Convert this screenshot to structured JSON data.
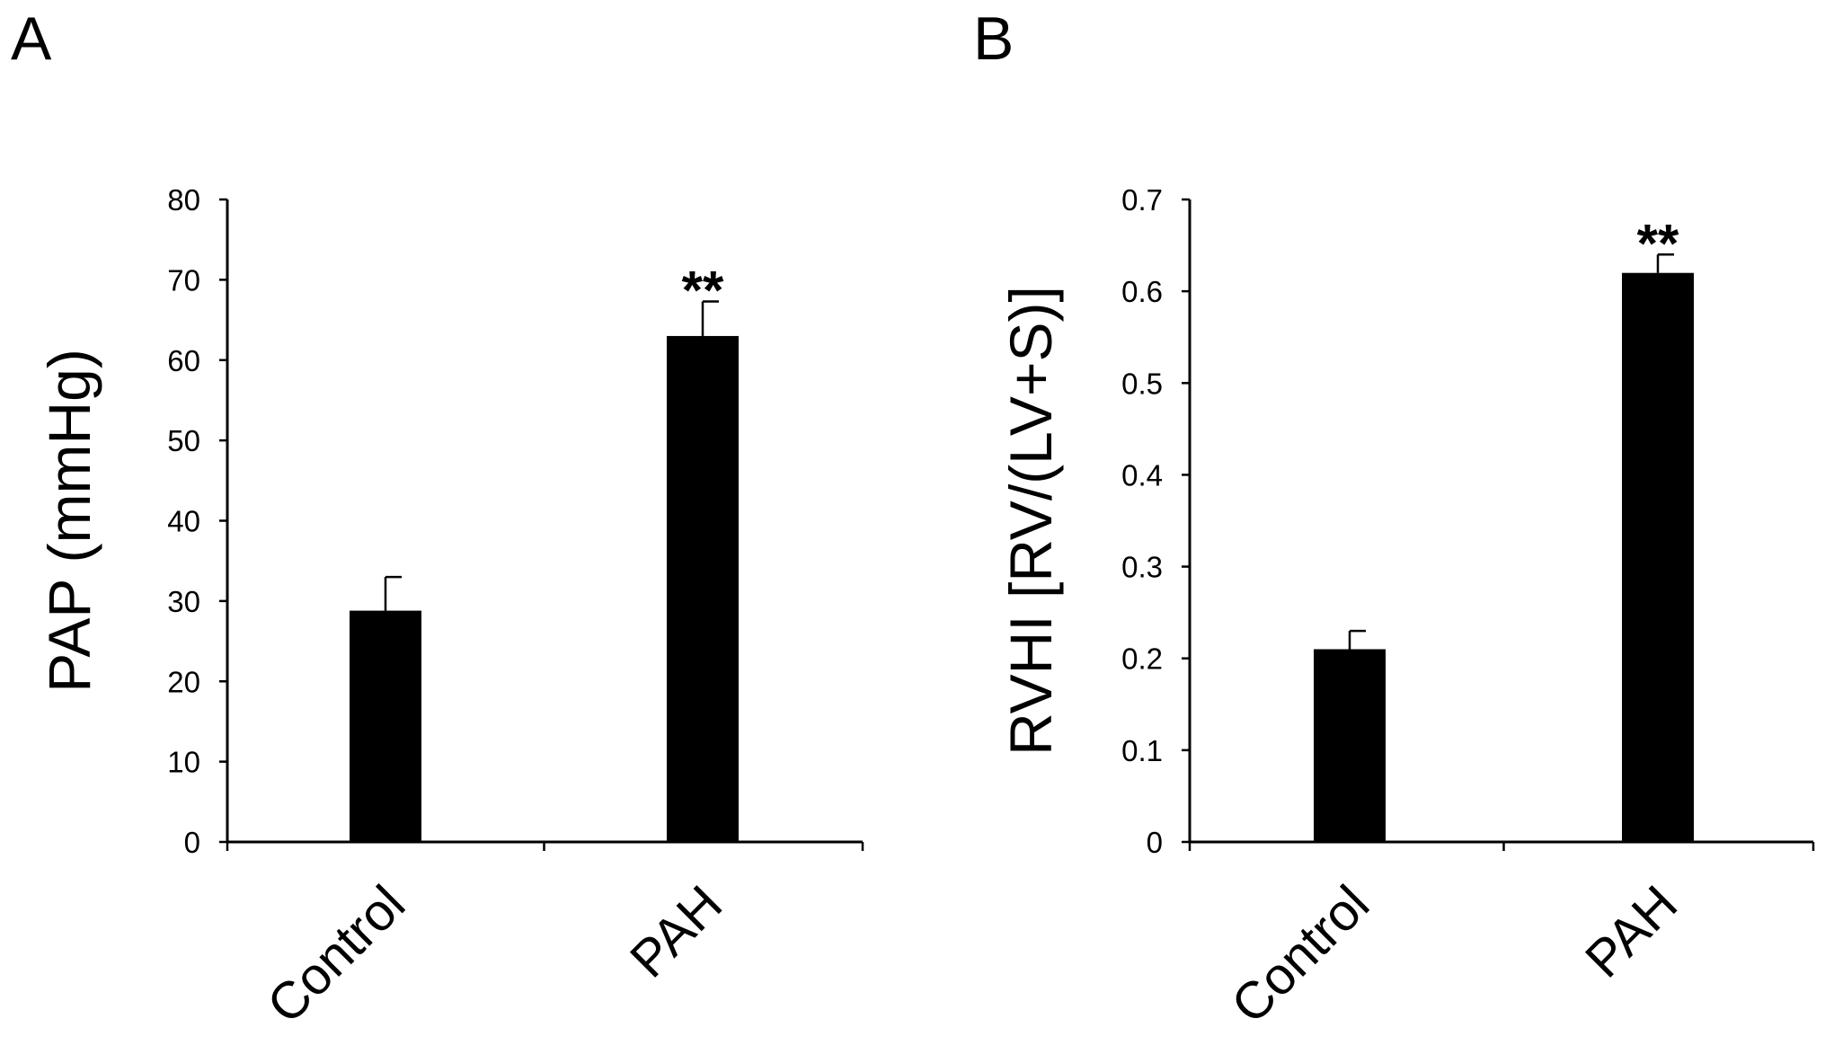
{
  "chart_data": [
    {
      "panel": "A",
      "type": "bar",
      "title": "",
      "xlabel": "",
      "ylabel": "PAP (mmHg)",
      "categories": [
        "Control",
        "PAH"
      ],
      "values": [
        28.8,
        63
      ],
      "errors": [
        4.2,
        4.3
      ],
      "significance": [
        "",
        "**"
      ],
      "ylim": [
        0,
        80
      ],
      "yticks": [
        0,
        10,
        20,
        30,
        40,
        50,
        60,
        70,
        80
      ],
      "ytick_labels": [
        "0",
        "10",
        "20",
        "30",
        "40",
        "50",
        "60",
        "70",
        "80"
      ],
      "bar_color": "#000000",
      "grid": false,
      "legend": "none"
    },
    {
      "panel": "B",
      "type": "bar",
      "title": "",
      "xlabel": "",
      "ylabel": "RVHI [RV/(LV+S)]",
      "categories": [
        "Control",
        "PAH"
      ],
      "values": [
        0.21,
        0.62
      ],
      "errors": [
        0.02,
        0.02
      ],
      "significance": [
        "",
        "**"
      ],
      "ylim": [
        0,
        0.7
      ],
      "yticks": [
        0,
        0.1,
        0.2,
        0.3,
        0.4,
        0.5,
        0.6,
        0.7
      ],
      "ytick_labels": [
        "0",
        "0.1",
        "0.2",
        "0.3",
        "0.4",
        "0.5",
        "0.6",
        "0.7"
      ],
      "bar_color": "#000000",
      "grid": false,
      "legend": "none"
    }
  ]
}
